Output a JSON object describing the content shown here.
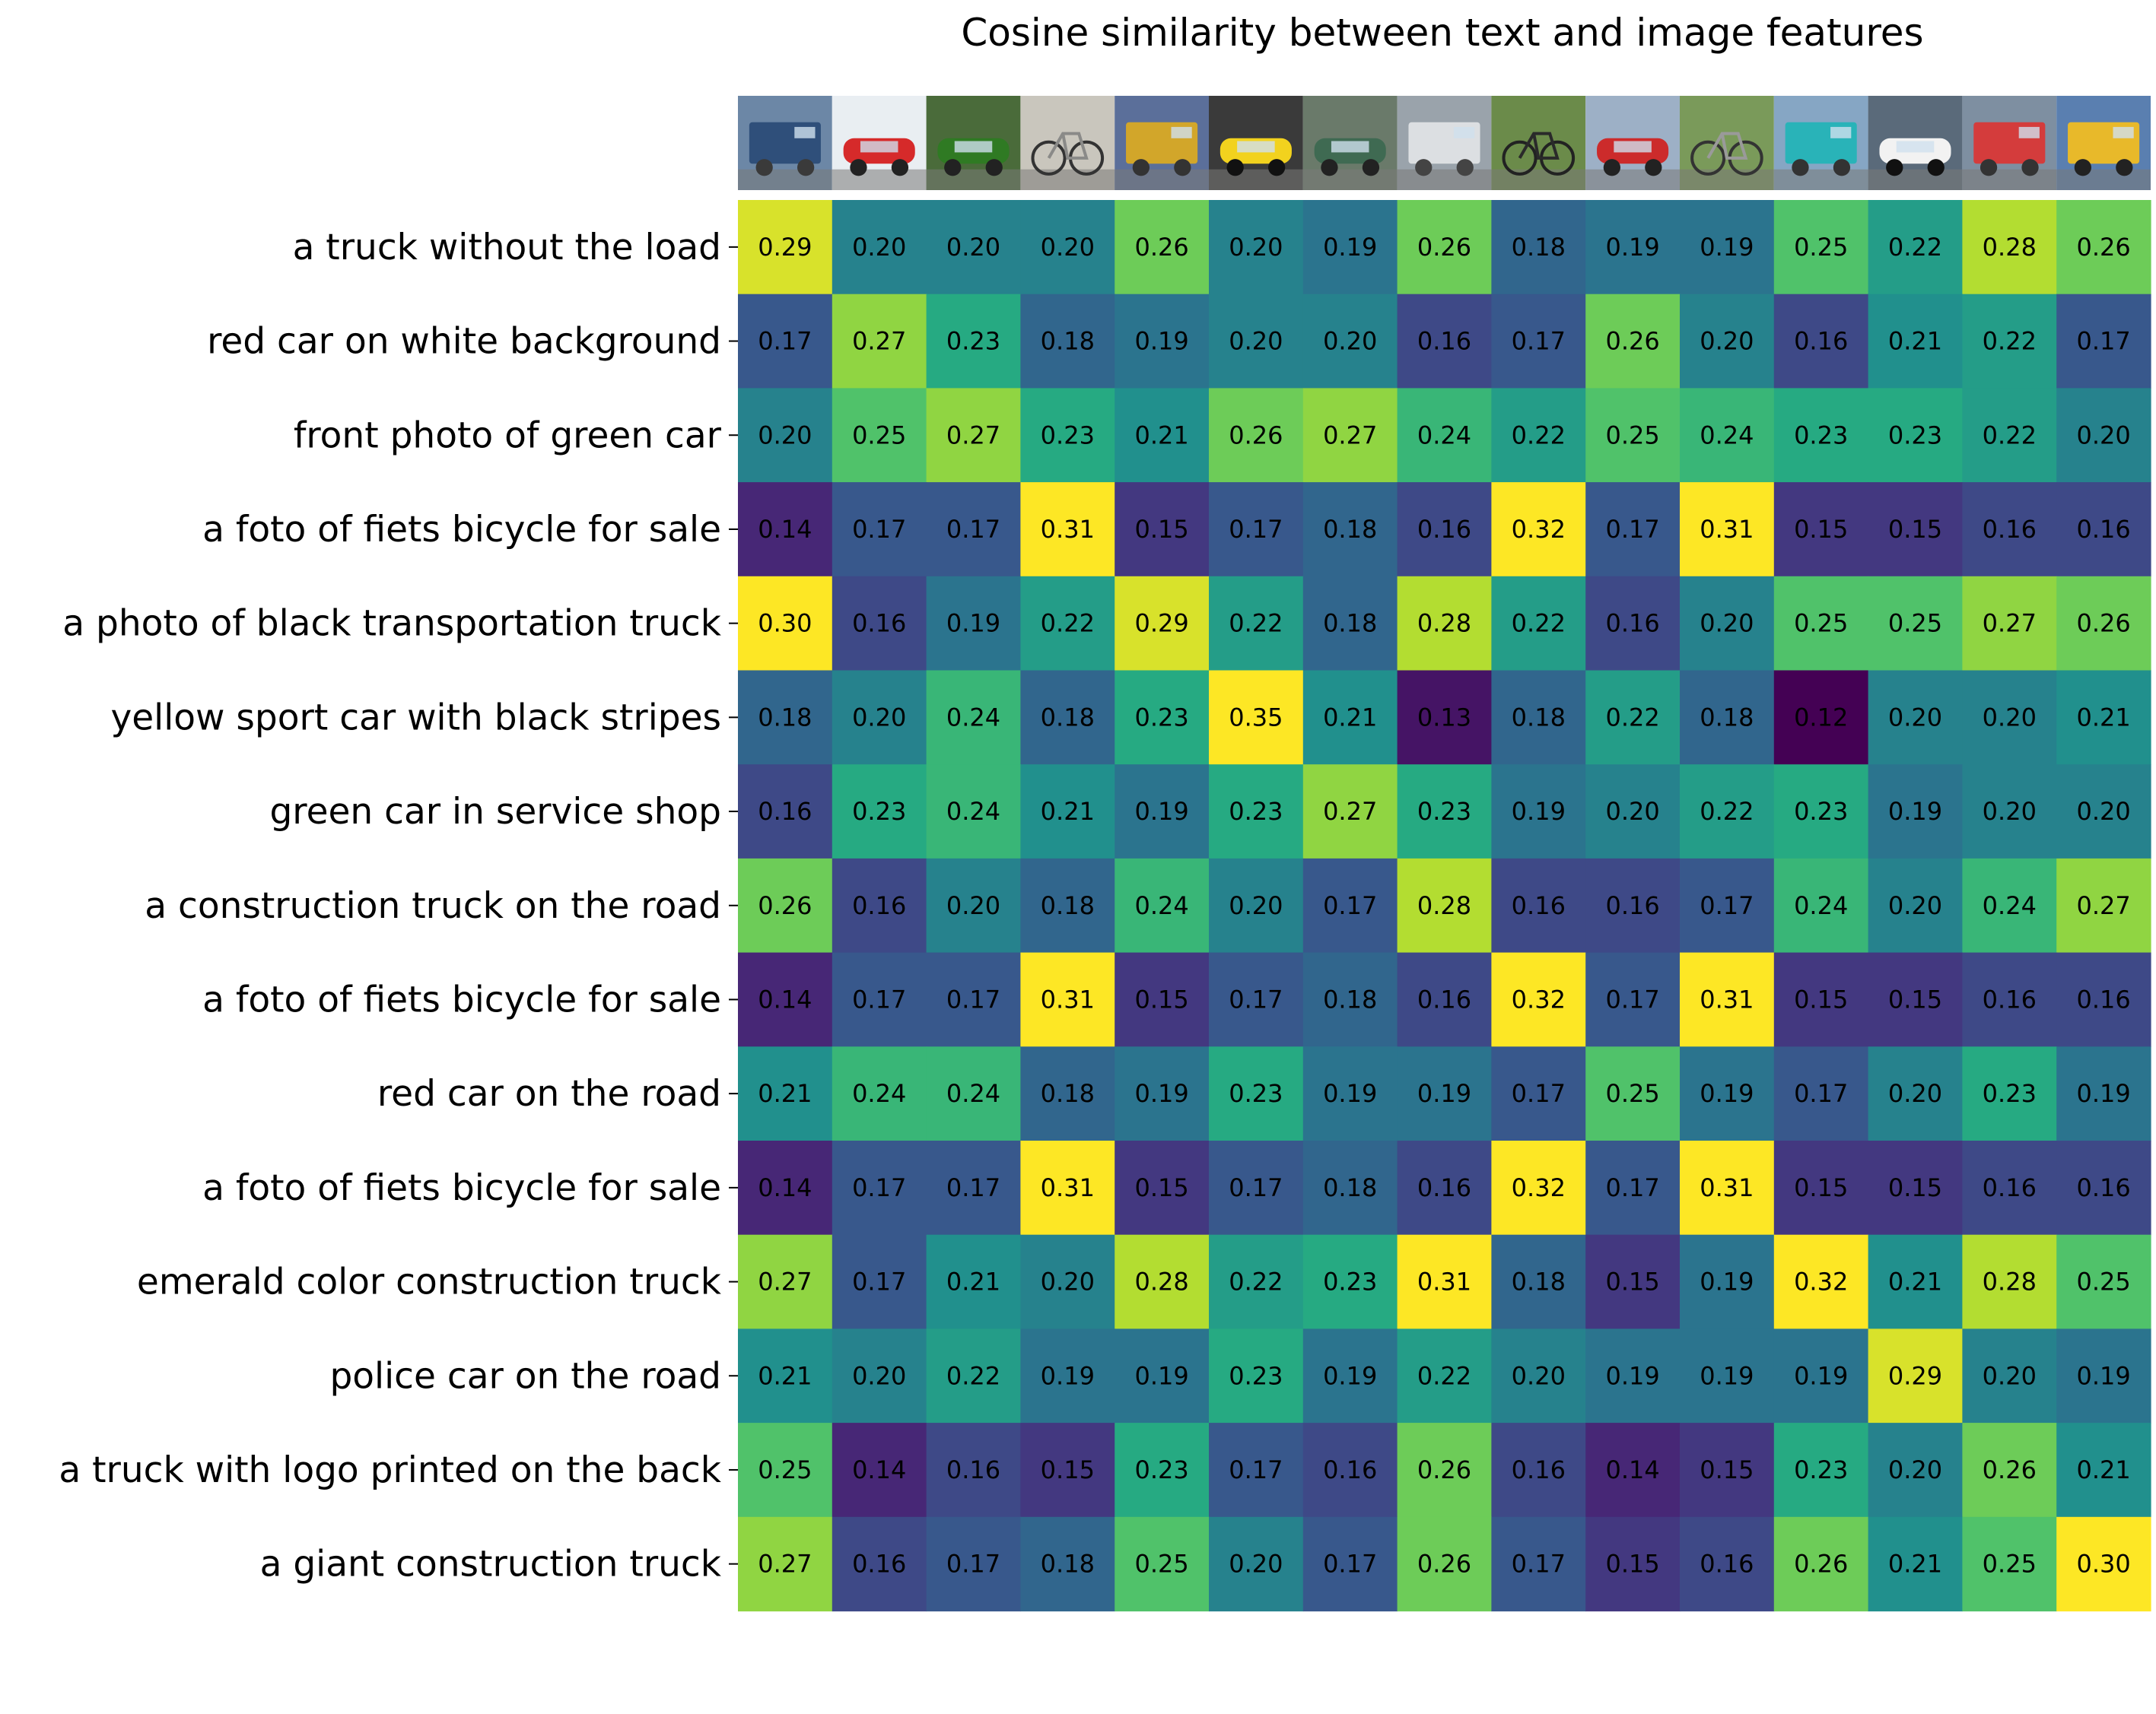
{
  "chart_data": {
    "type": "heatmap",
    "title": "Cosine similarity between text and image features",
    "xlabel": "",
    "ylabel": "",
    "colormap": "viridis",
    "color_range": [
      0.12,
      0.3
    ],
    "column_thumbnails": [
      "blue-semi-truck-icon",
      "red-hatchback-car-icon",
      "green-car-front-icon",
      "bicycle-icon",
      "yellow-truck-icon",
      "yellow-sports-car-icon",
      "green-car-in-shop-icon",
      "construction-dump-truck-icon",
      "dutch-bicycle-icon",
      "red-mini-car-icon",
      "city-bicycle-icon",
      "emerald-truck-icon",
      "police-car-icon",
      "logo-truck-icon",
      "giant-mining-truck-icon"
    ],
    "row_labels": [
      "a truck without the load",
      "red car on white background",
      "front photo of green car",
      "a foto of fiets bicycle for sale",
      "a photo of black transportation truck",
      "yellow sport car with black stripes",
      "green car in service shop",
      "a construction truck on the road",
      "a foto of fiets bicycle for sale",
      "red car on the road",
      "a foto of fiets bicycle for sale",
      "emerald color construction truck",
      "police car on the road",
      "a truck with logo printed on the back",
      "a giant construction truck"
    ],
    "values": [
      [
        0.29,
        0.2,
        0.2,
        0.2,
        0.26,
        0.2,
        0.19,
        0.26,
        0.18,
        0.19,
        0.19,
        0.25,
        0.22,
        0.28,
        0.26
      ],
      [
        0.17,
        0.27,
        0.23,
        0.18,
        0.19,
        0.2,
        0.2,
        0.16,
        0.17,
        0.26,
        0.2,
        0.16,
        0.21,
        0.22,
        0.17
      ],
      [
        0.2,
        0.25,
        0.27,
        0.23,
        0.21,
        0.26,
        0.27,
        0.24,
        0.22,
        0.25,
        0.24,
        0.23,
        0.23,
        0.22,
        0.2
      ],
      [
        0.14,
        0.17,
        0.17,
        0.31,
        0.15,
        0.17,
        0.18,
        0.16,
        0.32,
        0.17,
        0.31,
        0.15,
        0.15,
        0.16,
        0.16
      ],
      [
        0.3,
        0.16,
        0.19,
        0.22,
        0.29,
        0.22,
        0.18,
        0.28,
        0.22,
        0.16,
        0.2,
        0.25,
        0.25,
        0.27,
        0.26
      ],
      [
        0.18,
        0.2,
        0.24,
        0.18,
        0.23,
        0.35,
        0.21,
        0.13,
        0.18,
        0.22,
        0.18,
        0.12,
        0.2,
        0.2,
        0.21
      ],
      [
        0.16,
        0.23,
        0.24,
        0.21,
        0.19,
        0.23,
        0.27,
        0.23,
        0.19,
        0.2,
        0.22,
        0.23,
        0.19,
        0.2,
        0.2
      ],
      [
        0.26,
        0.16,
        0.2,
        0.18,
        0.24,
        0.2,
        0.17,
        0.28,
        0.16,
        0.16,
        0.17,
        0.24,
        0.2,
        0.24,
        0.27
      ],
      [
        0.14,
        0.17,
        0.17,
        0.31,
        0.15,
        0.17,
        0.18,
        0.16,
        0.32,
        0.17,
        0.31,
        0.15,
        0.15,
        0.16,
        0.16
      ],
      [
        0.21,
        0.24,
        0.24,
        0.18,
        0.19,
        0.23,
        0.19,
        0.19,
        0.17,
        0.25,
        0.19,
        0.17,
        0.2,
        0.23,
        0.19
      ],
      [
        0.14,
        0.17,
        0.17,
        0.31,
        0.15,
        0.17,
        0.18,
        0.16,
        0.32,
        0.17,
        0.31,
        0.15,
        0.15,
        0.16,
        0.16
      ],
      [
        0.27,
        0.17,
        0.21,
        0.2,
        0.28,
        0.22,
        0.23,
        0.31,
        0.18,
        0.15,
        0.19,
        0.32,
        0.21,
        0.28,
        0.25
      ],
      [
        0.21,
        0.2,
        0.22,
        0.19,
        0.19,
        0.23,
        0.19,
        0.22,
        0.2,
        0.19,
        0.19,
        0.19,
        0.29,
        0.2,
        0.19
      ],
      [
        0.25,
        0.14,
        0.16,
        0.15,
        0.23,
        0.17,
        0.16,
        0.26,
        0.16,
        0.14,
        0.15,
        0.23,
        0.2,
        0.26,
        0.21
      ],
      [
        0.27,
        0.16,
        0.17,
        0.18,
        0.25,
        0.2,
        0.17,
        0.26,
        0.17,
        0.15,
        0.16,
        0.26,
        0.21,
        0.25,
        0.3
      ]
    ]
  }
}
